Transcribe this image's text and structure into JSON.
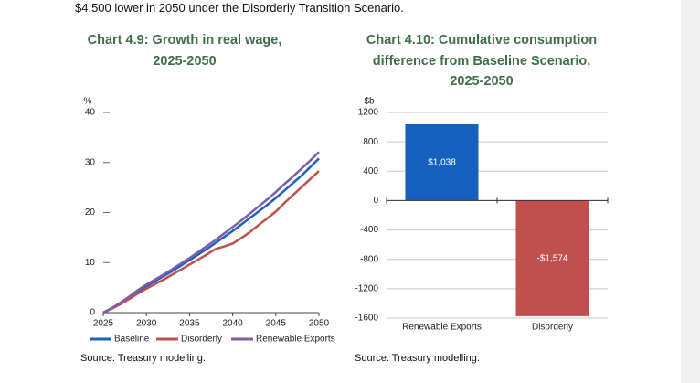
{
  "intro": "$4,500 lower in 2050 under the Disorderly Transition Scenario.",
  "chart_data": [
    {
      "type": "line",
      "title": "Chart 4.9: Growth in real wage, 2025-2050",
      "y_label": "%",
      "x": [
        2025,
        2026,
        2027,
        2028,
        2029,
        2030,
        2031,
        2032,
        2033,
        2034,
        2035,
        2036,
        2037,
        2038,
        2039,
        2040,
        2041,
        2042,
        2043,
        2044,
        2045,
        2046,
        2047,
        2048,
        2049,
        2050
      ],
      "xlim": [
        2025,
        2050
      ],
      "xticks": [
        2025,
        2030,
        2035,
        2040,
        2045,
        2050
      ],
      "ylim": [
        0,
        40
      ],
      "yticks": [
        0,
        10,
        20,
        30,
        40
      ],
      "grid": false,
      "series": [
        {
          "name": "Baseline",
          "color": "#1f5fbf",
          "values": [
            0,
            0.9,
            1.9,
            3.0,
            4.2,
            5.3,
            6.3,
            7.3,
            8.3,
            9.4,
            10.5,
            11.6,
            12.7,
            13.9,
            15.1,
            16.3,
            17.6,
            18.9,
            20.2,
            21.5,
            22.9,
            24.4,
            25.9,
            27.4,
            29.1,
            30.8
          ]
        },
        {
          "name": "Disorderly",
          "color": "#c0504d",
          "values": [
            0,
            0.8,
            1.7,
            2.7,
            3.8,
            4.8,
            5.7,
            6.6,
            7.6,
            8.6,
            9.6,
            10.6,
            11.6,
            12.7,
            13.2,
            13.8,
            14.9,
            16.1,
            17.5,
            18.8,
            20.2,
            21.9,
            23.5,
            25.1,
            26.7,
            28.3
          ]
        },
        {
          "name": "Renewable Exports",
          "color": "#7b5ea7",
          "values": [
            0,
            0.9,
            2.0,
            3.2,
            4.5,
            5.6,
            6.6,
            7.6,
            8.7,
            9.8,
            10.9,
            12.1,
            13.3,
            14.5,
            15.8,
            17.1,
            18.4,
            19.8,
            21.2,
            22.6,
            24.1,
            25.7,
            27.2,
            28.8,
            30.4,
            32.1
          ]
        }
      ],
      "source": "Source: Treasury modelling."
    },
    {
      "type": "bar",
      "title": "Chart 4.10: Cumulative consumption difference from Baseline Scenario, 2025-2050",
      "y_label": "$b",
      "categories": [
        "Renewable Exports",
        "Disorderly"
      ],
      "values": [
        1038,
        -1574
      ],
      "value_labels": [
        "$1,038",
        "-$1,574"
      ],
      "colors": [
        "#1560bd",
        "#c0504d"
      ],
      "ylim": [
        -1600,
        1200
      ],
      "yticks": [
        -1600,
        -1200,
        -800,
        -400,
        0,
        400,
        800,
        1200
      ],
      "grid": true,
      "source": "Source: Treasury modelling."
    }
  ]
}
